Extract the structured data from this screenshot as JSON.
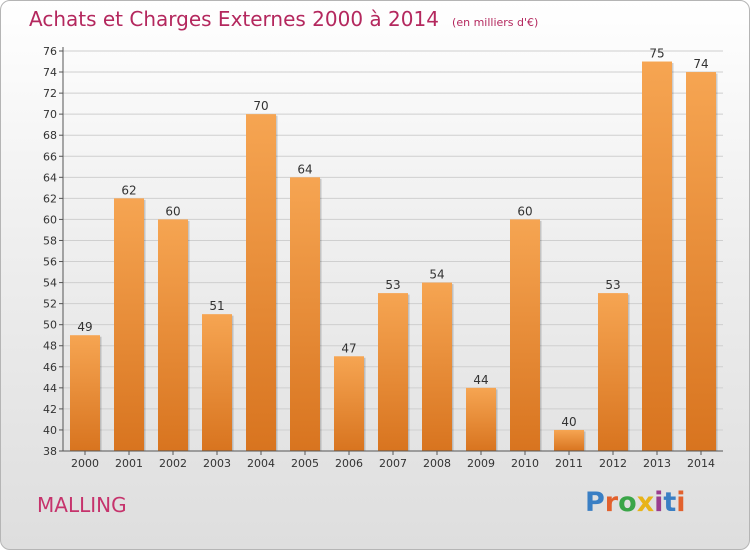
{
  "title": "Achats et Charges Externes 2000 à 2014",
  "unit_label": "(en milliers d'€)",
  "place": "MALLING",
  "logo_text": "Proxiti",
  "logo_colors": [
    "#3a7fc4",
    "#e2612d",
    "#3aa548",
    "#e8b319",
    "#9a3c8f",
    "#3a7fc4",
    "#e2612d"
  ],
  "colors": {
    "title": "#b4285e",
    "bar_top": "#f6a552",
    "bar_bottom": "#d8741f",
    "axis": "#555555",
    "grid": "#cfcfcf"
  },
  "chart_data": {
    "type": "bar",
    "categories": [
      "2000",
      "2001",
      "2002",
      "2003",
      "2004",
      "2005",
      "2006",
      "2007",
      "2008",
      "2009",
      "2010",
      "2011",
      "2012",
      "2013",
      "2014"
    ],
    "values": [
      49,
      62,
      60,
      51,
      70,
      64,
      47,
      53,
      54,
      44,
      60,
      40,
      53,
      75,
      74
    ],
    "ylim": [
      38,
      76
    ],
    "yticks": [
      38,
      40,
      42,
      44,
      46,
      48,
      50,
      52,
      54,
      56,
      58,
      60,
      62,
      64,
      66,
      68,
      70,
      72,
      74,
      76
    ],
    "grid": true,
    "data_labels": true,
    "title": "Achats et Charges Externes 2000 à 2014",
    "xlabel": "",
    "ylabel": ""
  }
}
